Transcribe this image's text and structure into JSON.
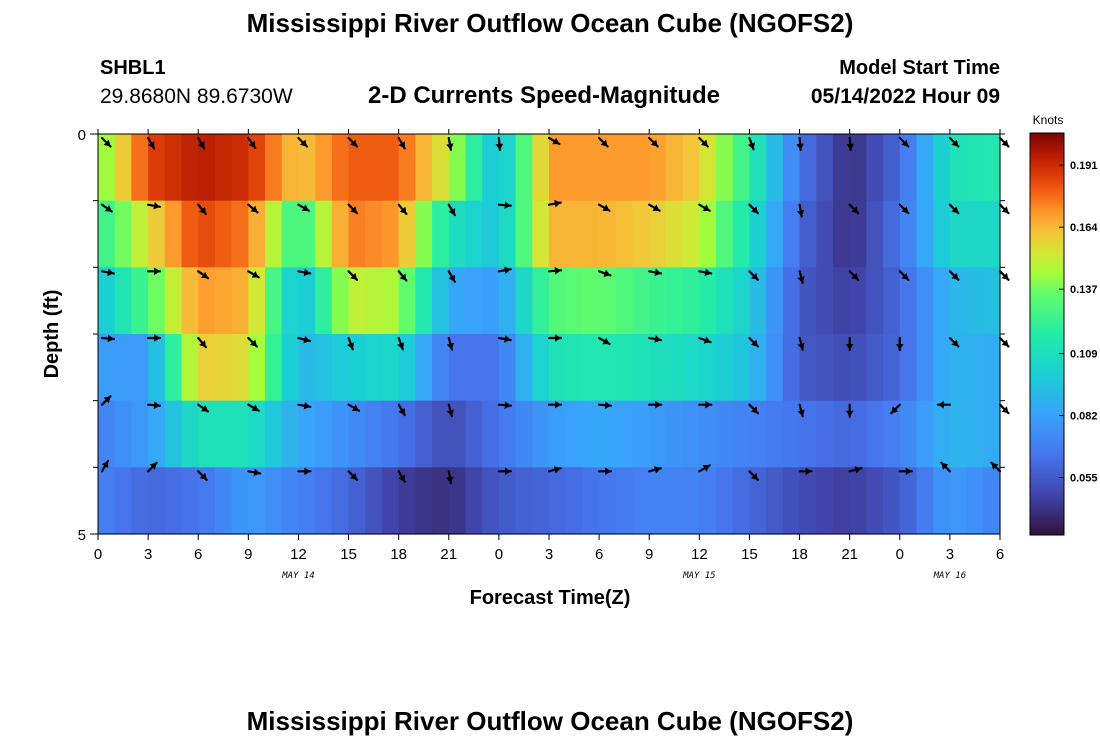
{
  "header": {
    "title": "Mississippi River Outflow Ocean Cube (NGOFS2)",
    "station_id": "SHBL1",
    "coordinates": "29.8680N  89.6730W",
    "subtitle": "2-D Currents Speed-Magnitude",
    "start_label": "Model Start Time",
    "start_value": "05/14/2022 Hour 09"
  },
  "footer": {
    "next_title": "Mississippi River Outflow Ocean Cube (NGOFS2)"
  },
  "chart_data": {
    "type": "heatmap",
    "xlabel": "Forecast Time(Z)",
    "ylabel": "Depth (ft)",
    "x_tick_labels": [
      "0",
      "3",
      "6",
      "9",
      "12",
      "15",
      "18",
      "21",
      "0",
      "3",
      "6",
      "9",
      "12",
      "15",
      "18",
      "21",
      "0",
      "3",
      "6"
    ],
    "x_range_hours": [
      0,
      54
    ],
    "date_labels": [
      {
        "label": "MAY 14",
        "hour": 12
      },
      {
        "label": "MAY 15",
        "hour": 36
      },
      {
        "label": "MAY 16",
        "hour": 51
      }
    ],
    "y_tick_labels": [
      "0",
      "5"
    ],
    "ylim": [
      0,
      5
    ],
    "depth_levels": 6,
    "colorbar": {
      "unit": "Knots",
      "tick_labels": [
        "0.191",
        "0.164",
        "0.137",
        "0.109",
        "0.082",
        "0.055"
      ],
      "tick_values": [
        0.191,
        0.164,
        0.137,
        0.109,
        0.082,
        0.055
      ],
      "range": [
        0.03,
        0.205
      ]
    },
    "speed_grid_hourly_step3": [
      [
        0.135,
        0.185,
        0.195,
        0.19,
        0.16,
        0.18,
        0.18,
        0.15,
        0.09,
        0.17,
        0.17,
        0.17,
        0.16,
        0.12,
        0.065,
        0.04,
        0.06,
        0.11,
        0.115
      ],
      [
        0.12,
        0.155,
        0.185,
        0.175,
        0.12,
        0.175,
        0.17,
        0.11,
        0.095,
        0.165,
        0.165,
        0.16,
        0.15,
        0.11,
        0.06,
        0.04,
        0.065,
        0.105,
        0.105
      ],
      [
        0.095,
        0.13,
        0.17,
        0.165,
        0.09,
        0.15,
        0.145,
        0.085,
        0.08,
        0.13,
        0.135,
        0.125,
        0.12,
        0.1,
        0.055,
        0.045,
        0.06,
        0.09,
        0.095
      ],
      [
        0.08,
        0.08,
        0.16,
        0.155,
        0.09,
        0.1,
        0.105,
        0.065,
        0.065,
        0.11,
        0.115,
        0.11,
        0.105,
        0.095,
        0.055,
        0.05,
        0.06,
        0.09,
        0.085
      ],
      [
        0.07,
        0.08,
        0.11,
        0.11,
        0.085,
        0.075,
        0.065,
        0.05,
        0.065,
        0.08,
        0.085,
        0.08,
        0.075,
        0.07,
        0.065,
        0.06,
        0.07,
        0.09,
        0.085
      ],
      [
        0.07,
        0.06,
        0.065,
        0.08,
        0.07,
        0.06,
        0.045,
        0.04,
        0.055,
        0.06,
        0.065,
        0.07,
        0.07,
        0.06,
        0.05,
        0.045,
        0.055,
        0.08,
        0.07
      ]
    ],
    "direction_deg_grid_step3": [
      [
        135,
        150,
        150,
        145,
        135,
        135,
        150,
        170,
        175,
        120,
        135,
        135,
        135,
        160,
        175,
        175,
        135,
        135,
        135
      ],
      [
        125,
        100,
        140,
        130,
        120,
        135,
        140,
        150,
        95,
        80,
        120,
        120,
        120,
        135,
        170,
        135,
        135,
        135,
        135
      ],
      [
        100,
        90,
        125,
        120,
        100,
        135,
        140,
        150,
        80,
        85,
        110,
        100,
        100,
        135,
        165,
        135,
        135,
        135,
        135
      ],
      [
        95,
        90,
        140,
        135,
        105,
        160,
        160,
        165,
        100,
        90,
        120,
        100,
        110,
        135,
        165,
        180,
        180,
        135,
        135
      ],
      [
        45,
        95,
        125,
        120,
        100,
        120,
        150,
        165,
        95,
        90,
        95,
        90,
        90,
        135,
        165,
        180,
        225,
        270,
        135
      ],
      [
        30,
        45,
        135,
        100,
        90,
        135,
        150,
        170,
        90,
        75,
        90,
        75,
        60,
        135,
        90,
        75,
        90,
        315,
        315
      ]
    ]
  }
}
